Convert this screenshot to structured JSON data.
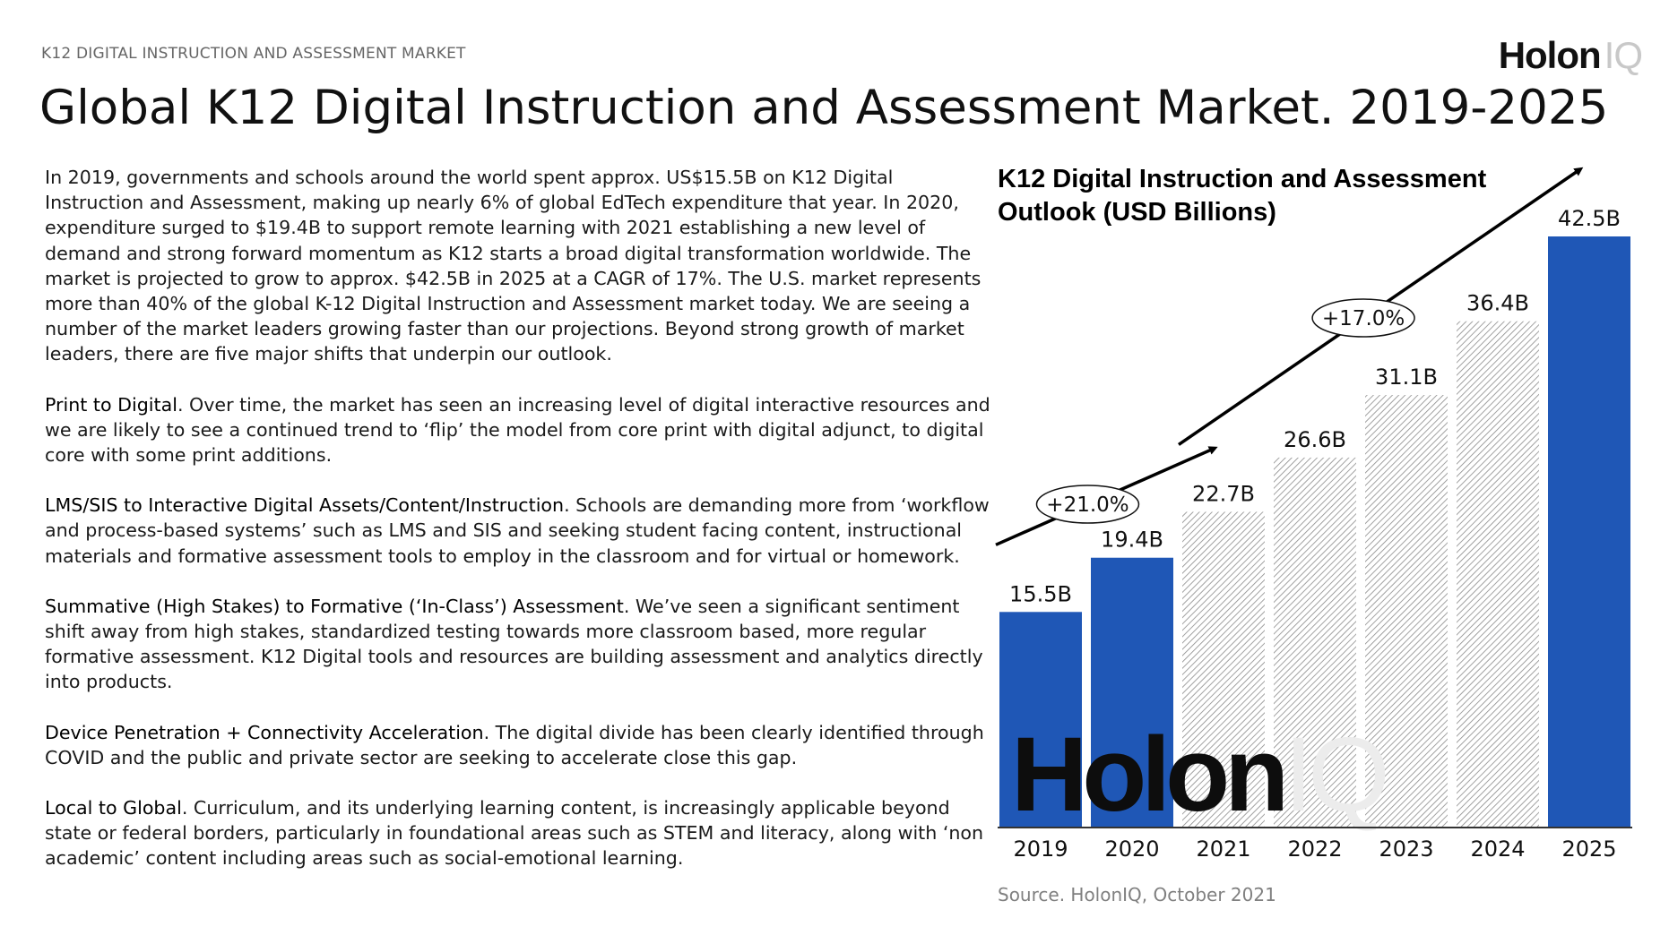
{
  "header": {
    "kicker": "K12 DIGITAL INSTRUCTION AND ASSESSMENT MARKET",
    "brand": "Holon",
    "brand_suffix": "IQ",
    "title": "Global K12 Digital Instruction and Assessment Market. 2019-2025"
  },
  "body": {
    "intro": "In 2019, governments and schools around the world spent approx. US$15.5B on K12 Digital Instruction and Assessment, making up nearly 6% of global EdTech expenditure that year. In 2020, expenditure surged to $19.4B to support remote learning with 2021 establishing a new level of demand and strong forward momentum as K12 starts a broad digital transformation worldwide. The market is projected to grow to approx. $42.5B in 2025 at a CAGR of 17%. The U.S. market represents more than 40% of the global K-12 Digital Instruction and Assessment market today. We are seeing a number of the market leaders growing faster than our projections. Beyond strong growth of market leaders, there are five major shifts that underpin our outlook.",
    "shifts": [
      {
        "lead": "Print to Digital",
        "text": ". Over time, the market has seen an increasing level of digital interactive resources and we are likely to see a continued trend to ‘flip’ the model from core print with digital adjunct, to digital core with some print additions."
      },
      {
        "lead": "LMS/SIS to Interactive Digital Assets/Content/Instruction",
        "text": ". Schools are demanding more from ‘workflow and process-based systems’ such as LMS and SIS and seeking student facing content, instructional materials and formative assessment tools to employ in the classroom and for virtual or homework."
      },
      {
        "lead": "Summative (High Stakes) to Formative (‘In-Class’) Assessment",
        "text": ". We’ve seen a significant sentiment shift away from high stakes, standardized testing towards more classroom based, more regular formative assessment. K12 Digital tools and resources are building assessment and analytics directly into products."
      },
      {
        "lead": "Device Penetration + Connectivity Acceleration",
        "text": ". The digital divide has been clearly identified through COVID and the public and private sector are seeking to accelerate close this gap."
      },
      {
        "lead": "Local to Global",
        "text": ". Curriculum, and its underlying learning content, is increasingly applicable beyond state or federal borders, particularly in foundational areas such as STEM and literacy, along with ‘non academic’ content including areas such as social-emotional learning."
      }
    ]
  },
  "chart_data": {
    "type": "bar",
    "title_lines": [
      "K12 Digital Instruction and Assessment",
      "Outlook (USD Billions)"
    ],
    "categories": [
      "2019",
      "2020",
      "2021",
      "2022",
      "2023",
      "2024",
      "2025"
    ],
    "values": [
      15.5,
      19.4,
      22.7,
      26.6,
      31.1,
      36.4,
      42.5
    ],
    "data_labels": [
      "15.5B",
      "19.4B",
      "22.7B",
      "26.6B",
      "31.1B",
      "36.4B",
      "42.5B"
    ],
    "bar_styles": [
      "solid",
      "solid",
      "hatched",
      "hatched",
      "hatched",
      "hatched",
      "solid"
    ],
    "ylim": [
      0,
      42.5
    ],
    "grid": false,
    "growth_annotations": [
      {
        "label": "+21.0%",
        "from": "2019",
        "to": "2021"
      },
      {
        "label": "+17.0%",
        "from": "2021",
        "to": "2025"
      }
    ],
    "watermark": "HolonIQ",
    "colors": {
      "solid": "#1f57b6",
      "hatch": "#8a8a8a",
      "axis": "#333333",
      "arrow": "#000000"
    }
  },
  "source": "Source. HolonIQ, October 2021"
}
